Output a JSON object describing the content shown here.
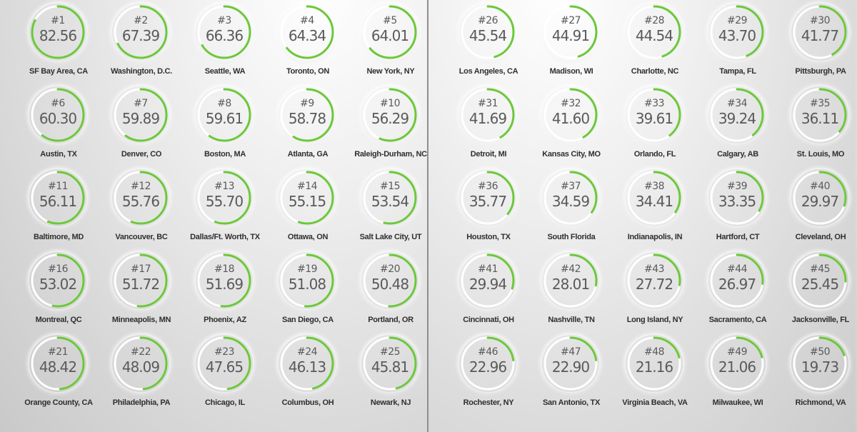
{
  "colors": {
    "arc": "#6cc83a",
    "track": "#ffffff",
    "text": "#5a5a5a",
    "city": "#2f2f2f"
  },
  "max_score": 100,
  "cities": [
    {
      "rank": "#1",
      "score": "82.56",
      "name": "SF Bay Area, CA"
    },
    {
      "rank": "#2",
      "score": "67.39",
      "name": "Washington, D.C."
    },
    {
      "rank": "#3",
      "score": "66.36",
      "name": "Seattle, WA"
    },
    {
      "rank": "#4",
      "score": "64.34",
      "name": "Toronto, ON"
    },
    {
      "rank": "#5",
      "score": "64.01",
      "name": "New York, NY"
    },
    {
      "rank": "#6",
      "score": "60.30",
      "name": "Austin, TX"
    },
    {
      "rank": "#7",
      "score": "59.89",
      "name": "Denver, CO"
    },
    {
      "rank": "#8",
      "score": "59.61",
      "name": "Boston, MA"
    },
    {
      "rank": "#9",
      "score": "58.78",
      "name": "Atlanta, GA"
    },
    {
      "rank": "#10",
      "score": "56.29",
      "name": "Raleigh-Durham, NC"
    },
    {
      "rank": "#11",
      "score": "56.11",
      "name": "Baltimore, MD"
    },
    {
      "rank": "#12",
      "score": "55.76",
      "name": "Vancouver, BC"
    },
    {
      "rank": "#13",
      "score": "55.70",
      "name": "Dallas/Ft. Worth, TX"
    },
    {
      "rank": "#14",
      "score": "55.15",
      "name": "Ottawa, ON"
    },
    {
      "rank": "#15",
      "score": "53.54",
      "name": "Salt Lake City, UT"
    },
    {
      "rank": "#16",
      "score": "53.02",
      "name": "Montreal, QC"
    },
    {
      "rank": "#17",
      "score": "51.72",
      "name": "Minneapolis, MN"
    },
    {
      "rank": "#18",
      "score": "51.69",
      "name": "Phoenix, AZ"
    },
    {
      "rank": "#19",
      "score": "51.08",
      "name": "San Diego, CA"
    },
    {
      "rank": "#20",
      "score": "50.48",
      "name": "Portland, OR"
    },
    {
      "rank": "#21",
      "score": "48.42",
      "name": "Orange County, CA"
    },
    {
      "rank": "#22",
      "score": "48.09",
      "name": "Philadelphia, PA"
    },
    {
      "rank": "#23",
      "score": "47.65",
      "name": "Chicago, IL"
    },
    {
      "rank": "#24",
      "score": "46.13",
      "name": "Columbus, OH"
    },
    {
      "rank": "#25",
      "score": "45.81",
      "name": "Newark, NJ"
    },
    {
      "rank": "#26",
      "score": "45.54",
      "name": "Los Angeles, CA"
    },
    {
      "rank": "#27",
      "score": "44.91",
      "name": "Madison, WI"
    },
    {
      "rank": "#28",
      "score": "44.54",
      "name": "Charlotte, NC"
    },
    {
      "rank": "#29",
      "score": "43.70",
      "name": "Tampa, FL"
    },
    {
      "rank": "#30",
      "score": "41.77",
      "name": "Pittsburgh, PA"
    },
    {
      "rank": "#31",
      "score": "41.69",
      "name": "Detroit, MI"
    },
    {
      "rank": "#32",
      "score": "41.60",
      "name": "Kansas City, MO"
    },
    {
      "rank": "#33",
      "score": "39.61",
      "name": "Orlando, FL"
    },
    {
      "rank": "#34",
      "score": "39.24",
      "name": "Calgary, AB"
    },
    {
      "rank": "#35",
      "score": "36.11",
      "name": "St. Louis, MO"
    },
    {
      "rank": "#36",
      "score": "35.77",
      "name": "Houston, TX"
    },
    {
      "rank": "#37",
      "score": "34.59",
      "name": "South Florida"
    },
    {
      "rank": "#38",
      "score": "34.41",
      "name": "Indianapolis, IN"
    },
    {
      "rank": "#39",
      "score": "33.35",
      "name": "Hartford, CT"
    },
    {
      "rank": "#40",
      "score": "29.97",
      "name": "Cleveland, OH"
    },
    {
      "rank": "#41",
      "score": "29.94",
      "name": "Cincinnati, OH"
    },
    {
      "rank": "#42",
      "score": "28.01",
      "name": "Nashville, TN"
    },
    {
      "rank": "#43",
      "score": "27.72",
      "name": "Long Island, NY"
    },
    {
      "rank": "#44",
      "score": "26.97",
      "name": "Sacramento, CA"
    },
    {
      "rank": "#45",
      "score": "25.45",
      "name": "Jacksonville, FL"
    },
    {
      "rank": "#46",
      "score": "22.96",
      "name": "Rochester, NY"
    },
    {
      "rank": "#47",
      "score": "22.90",
      "name": "San Antonio, TX"
    },
    {
      "rank": "#48",
      "score": "21.16",
      "name": "Virginia Beach, VA"
    },
    {
      "rank": "#49",
      "score": "21.06",
      "name": "Milwaukee, WI"
    },
    {
      "rank": "#50",
      "score": "19.73",
      "name": "Richmond, VA"
    }
  ]
}
